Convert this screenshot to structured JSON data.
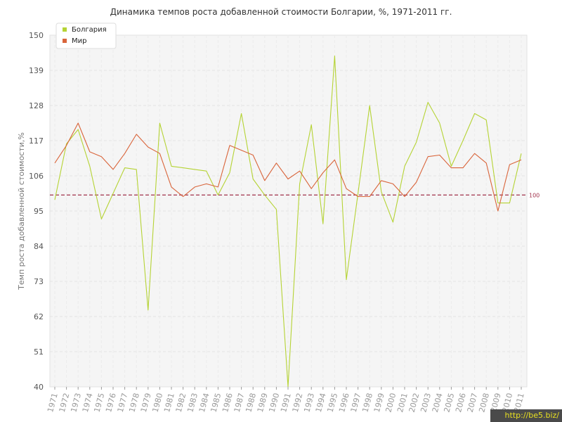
{
  "chart_data": {
    "type": "line",
    "title": "Динамика темпов роста добавленной стоимости Болгарии, %, 1971-2011 гг.",
    "ylabel": "Темп роста добавленной стоимости,%",
    "xlabel": "",
    "ylim": [
      40,
      150
    ],
    "yticks": [
      "40",
      "51",
      "62",
      "73",
      "84",
      "95",
      "106",
      "117",
      "128",
      "139",
      "150"
    ],
    "x": [
      "1971",
      "1972",
      "1973",
      "1974",
      "1975",
      "1976",
      "1977",
      "1978",
      "1979",
      "1980",
      "1981",
      "1982",
      "1983",
      "1984",
      "1985",
      "1986",
      "1987",
      "1988",
      "1989",
      "1990",
      "1991",
      "1992",
      "1993",
      "1994",
      "1995",
      "1996",
      "1997",
      "1998",
      "1999",
      "2000",
      "2001",
      "2002",
      "2003",
      "2004",
      "2005",
      "2006",
      "2007",
      "2008",
      "2009",
      "2010",
      "2011"
    ],
    "series": [
      {
        "name": "Болгария",
        "color": "#b5d334",
        "values": [
          98.5,
          116,
          120.5,
          109,
          92.5,
          100.5,
          108.5,
          108,
          64,
          122.5,
          109,
          108.5,
          108,
          107.5,
          100,
          107,
          125.5,
          105,
          100,
          95.5,
          40,
          103.5,
          122,
          91,
          143.5,
          73.5,
          100.5,
          128,
          101,
          91.5,
          109,
          116.5,
          129,
          122.5,
          109,
          117,
          125.5,
          123.5,
          97.5,
          97.5,
          113
        ]
      },
      {
        "name": "Мир",
        "color": "#d9643a",
        "values": [
          110,
          115.5,
          122.5,
          113.5,
          112,
          108,
          113,
          119,
          115,
          113,
          102.5,
          99.5,
          102.5,
          103.5,
          102.5,
          115.5,
          114,
          112.5,
          104.5,
          110,
          105,
          107.5,
          102,
          107,
          111,
          102,
          99.5,
          99.5,
          104.5,
          103.5,
          99.5,
          104,
          112,
          112.5,
          108.5,
          108.5,
          113,
          110,
          95,
          109.5,
          111
        ]
      }
    ],
    "reference_line": {
      "value": 100,
      "label": "100",
      "color": "#a0304a"
    },
    "grid": true,
    "legend_position": "top-left"
  },
  "watermark": "http://be5.biz/"
}
